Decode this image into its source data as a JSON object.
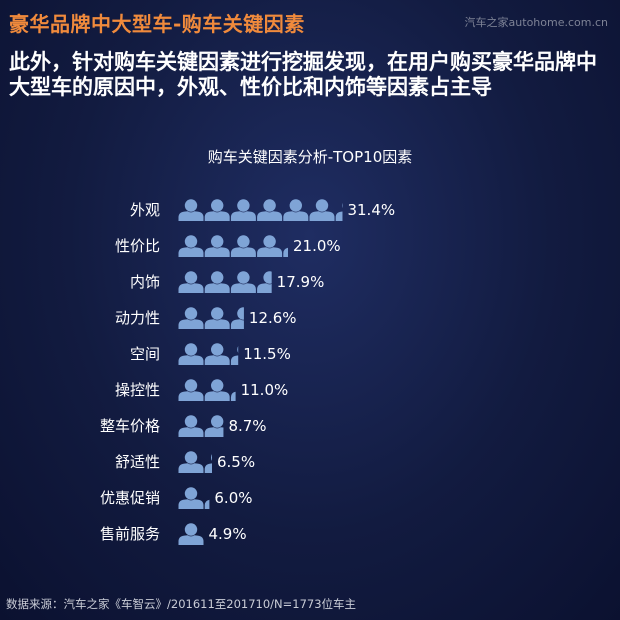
{
  "header": {
    "title": "豪华品牌中大型车-购车关键因素",
    "watermark": "汽车之家autohome.com.cn"
  },
  "headline": "此外，针对购车关键因素进行挖掘发现，在用户购买豪华品牌中大型车的原因中，外观、性价比和内饰等因素占主导",
  "colors": {
    "background": "#121b40",
    "accent_title": "#f08a3c",
    "icon_fill": "#7fa4d6",
    "text": "#ffffff"
  },
  "footer": {
    "source": "数据来源：汽车之家《车智云》/201611至201710/N=1773位车主"
  },
  "chart_data": {
    "type": "bar",
    "title": "购车关键因素分析-TOP10因素",
    "categories": [
      "外观",
      "性价比",
      "内饰",
      "动力性",
      "空间",
      "操控性",
      "整车价格",
      "舒适性",
      "优惠促销",
      "售前服务"
    ],
    "values": [
      31.4,
      21.0,
      17.9,
      12.6,
      11.5,
      11.0,
      8.7,
      6.5,
      6.0,
      4.9
    ],
    "value_labels": [
      "31.4%",
      "21.0%",
      "17.9%",
      "12.6%",
      "11.5%",
      "11.0%",
      "8.7%",
      "6.5%",
      "6.0%",
      "4.9%"
    ],
    "unit": "%",
    "mark": "person-icon",
    "xlabel": "",
    "ylabel": ""
  }
}
